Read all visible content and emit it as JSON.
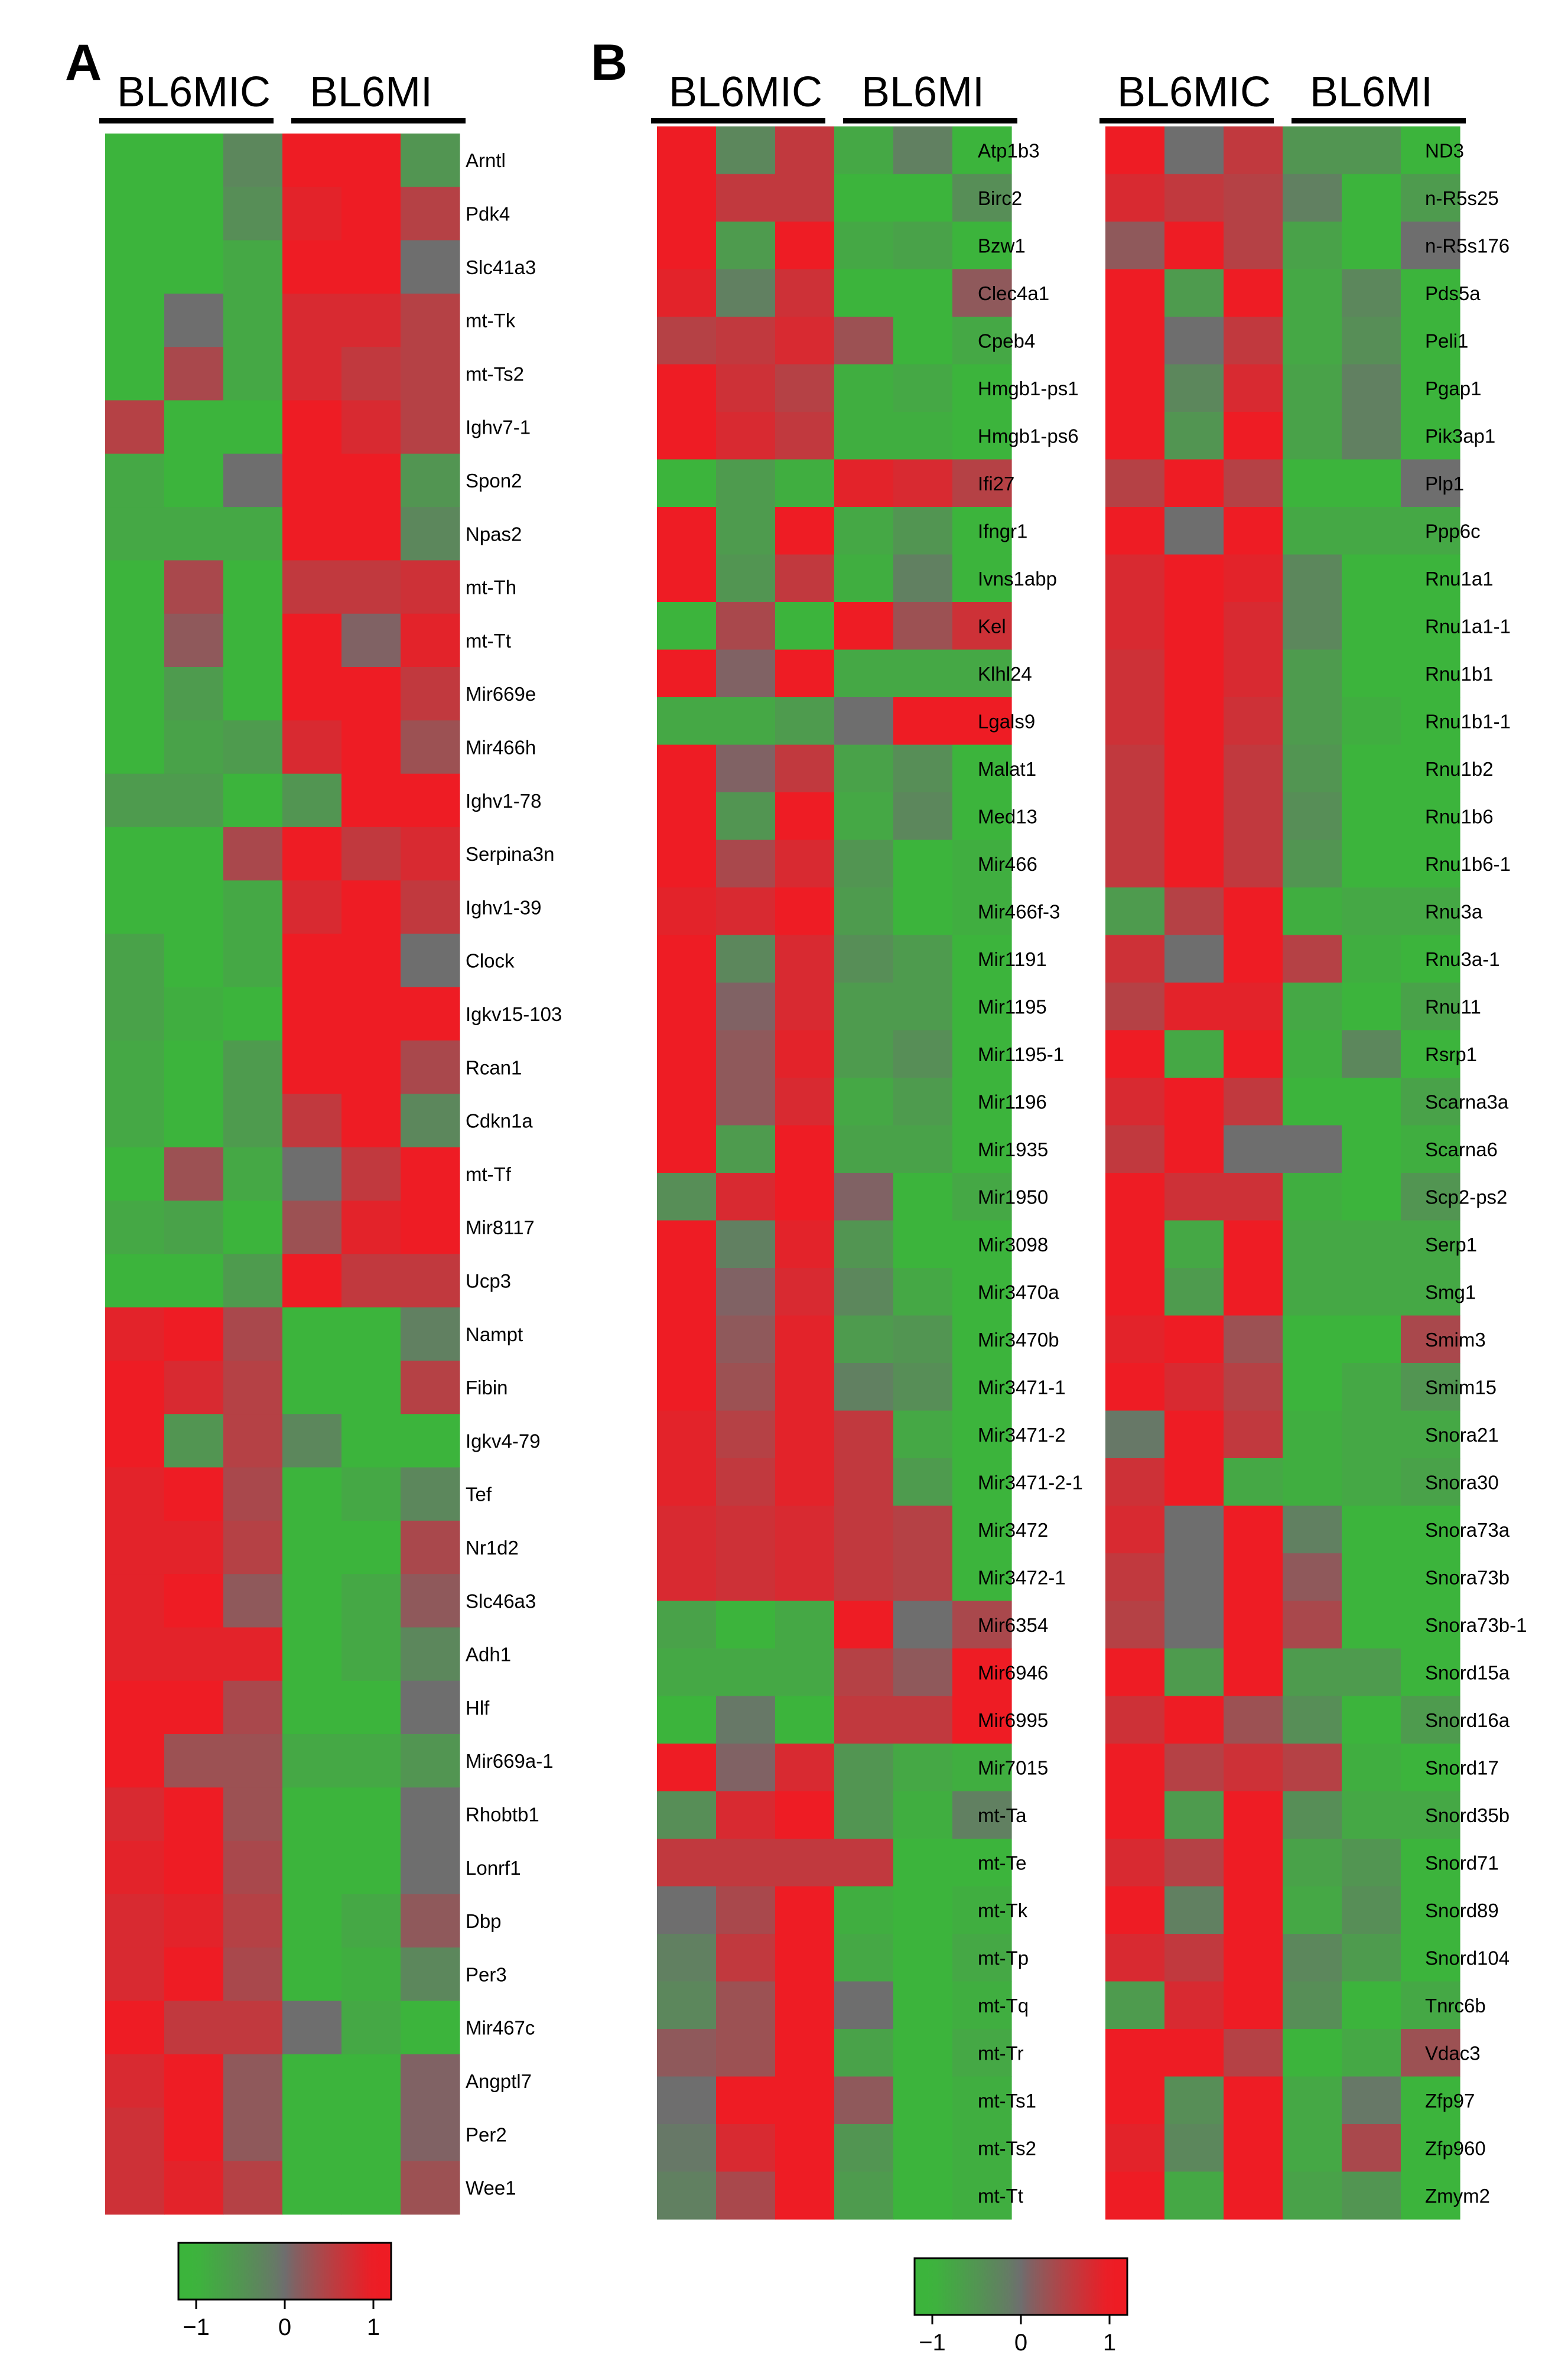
{
  "chart_data": [
    {
      "type": "heatmap",
      "panel": "A",
      "title": "",
      "groups": [
        "BL6MIC",
        "BL6MI"
      ],
      "columns_per_group": 3,
      "rows": [
        "Arntl",
        "Pdk4",
        "Slc41a3",
        "mt-Tk",
        "mt-Ts2",
        "Ighv7-1",
        "Spon2",
        "Npas2",
        "mt-Th",
        "mt-Tt",
        "Mir669e",
        "Mir466h",
        "Ighv1-78",
        "Serpina3n",
        "Ighv1-39",
        "Clock",
        "Igkv15-103",
        "Rcan1",
        "Cdkn1a",
        "mt-Tf",
        "Mir8117",
        "Ucp3",
        "Nampt",
        "Fibin",
        "Igkv4-79",
        "Tef",
        "Nr1d2",
        "Slc46a3",
        "Adh1",
        "Hlf",
        "Mir669a-1",
        "Rhobtb1",
        "Lonrf1",
        "Dbp",
        "Per3",
        "Mir467c",
        "Angptl7",
        "Per2",
        "Wee1"
      ],
      "values": [
        [
          -1,
          -1,
          -0.3,
          1.1,
          1.1,
          -0.5
        ],
        [
          -1,
          -1,
          -0.4,
          0.9,
          1.1,
          0.5
        ],
        [
          -1,
          -1,
          -0.8,
          1.2,
          1.2,
          0
        ],
        [
          -1,
          0,
          -0.8,
          0.8,
          0.8,
          0.5
        ],
        [
          -1,
          0.4,
          -0.8,
          0.8,
          0.6,
          0.5
        ],
        [
          0.5,
          -1,
          -1,
          1,
          0.8,
          0.5
        ],
        [
          -0.8,
          -1,
          0,
          1.2,
          1,
          -0.5
        ],
        [
          -0.8,
          -0.8,
          -0.8,
          1.2,
          1.2,
          -0.3
        ],
        [
          -1,
          0.4,
          -1,
          0.6,
          0.6,
          0.7
        ],
        [
          -1,
          0.2,
          -1,
          1,
          0.1,
          0.9
        ],
        [
          -1,
          -0.6,
          -1,
          1,
          1,
          0.6
        ],
        [
          -1,
          -0.7,
          -0.6,
          0.8,
          1.3,
          0.3
        ],
        [
          -0.6,
          -0.6,
          -1,
          -0.5,
          1.3,
          1.1
        ],
        [
          -1,
          -1,
          0.4,
          1,
          0.6,
          0.8
        ],
        [
          -1,
          -1,
          -0.8,
          0.8,
          1.4,
          0.6
        ],
        [
          -0.7,
          -1,
          -0.8,
          1.1,
          1.1,
          0
        ],
        [
          -0.7,
          -0.9,
          -1,
          1,
          1,
          1
        ],
        [
          -0.8,
          -1,
          -0.6,
          1,
          1,
          0.4
        ],
        [
          -0.8,
          -1,
          -0.6,
          0.6,
          1.4,
          -0.3
        ],
        [
          -1,
          0.3,
          -0.8,
          0,
          0.6,
          1.4
        ],
        [
          -0.8,
          -0.7,
          -1,
          0.3,
          0.9,
          1.4
        ],
        [
          -1,
          -1,
          -0.6,
          1.4,
          0.6,
          0.6
        ],
        [
          0.9,
          1.1,
          0.4,
          -1,
          -1,
          -0.2
        ],
        [
          1,
          0.8,
          0.5,
          -1,
          -1,
          0.5
        ],
        [
          1.3,
          -0.5,
          0.5,
          -0.3,
          -1,
          -1
        ],
        [
          0.9,
          1.2,
          0.4,
          -1,
          -0.8,
          -0.3
        ],
        [
          0.9,
          0.9,
          0.5,
          -1,
          -1,
          0.4
        ],
        [
          0.9,
          1,
          0.2,
          -1,
          -0.8,
          0.2
        ],
        [
          0.9,
          0.9,
          0.9,
          -1,
          -0.8,
          -0.3
        ],
        [
          1,
          1,
          0.4,
          -1,
          -1,
          0
        ],
        [
          1.3,
          0.3,
          0.3,
          -0.8,
          -0.8,
          -0.5
        ],
        [
          0.8,
          1.3,
          0.3,
          -1,
          -1,
          0
        ],
        [
          0.9,
          1.1,
          0.4,
          -1,
          -1,
          0
        ],
        [
          0.8,
          0.9,
          0.5,
          -1,
          -0.8,
          0.2
        ],
        [
          0.8,
          1,
          0.4,
          -1,
          -0.9,
          -0.3
        ],
        [
          1,
          0.6,
          0.6,
          0,
          -0.8,
          -1
        ],
        [
          0.8,
          1.3,
          0.2,
          -1,
          -1,
          0.1
        ],
        [
          0.7,
          1.4,
          0.2,
          -1,
          -1,
          0.1
        ],
        [
          0.7,
          0.9,
          0.5,
          -1,
          -1,
          0.3
        ]
      ],
      "colorbar": {
        "ticks": [
          "-1",
          "0",
          "1"
        ],
        "low_color": "#3cb43c",
        "mid_color": "#6e6e6e",
        "high_color": "#ee1c24"
      }
    },
    {
      "type": "heatmap",
      "panel": "B",
      "title": "",
      "groups": [
        "BL6MIC",
        "BL6MI"
      ],
      "columns_per_group": 3,
      "rows": [
        "Atp1b3",
        "Birc2",
        "Bzw1",
        "Clec4a1",
        "Cpeb4",
        "Hmgb1-ps1",
        "Hmgb1-ps6",
        "Ifi27",
        "Ifngr1",
        "Ivns1abp",
        "Kel",
        "Klhl24",
        "Lgals9",
        "Malat1",
        "Med13",
        "Mir466",
        "Mir466f-3",
        "Mir1191",
        "Mir1195",
        "Mir1195-1",
        "Mir1196",
        "Mir1935",
        "Mir1950",
        "Mir3098",
        "Mir3470a",
        "Mir3470b",
        "Mir3471-1",
        "Mir3471-2",
        "Mir3471-2-1",
        "Mir3472",
        "Mir3472-1",
        "Mir6354",
        "Mir6946",
        "Mir6995",
        "Mir7015",
        "mt-Ta",
        "mt-Te",
        "mt-Tk",
        "mt-Tp",
        "mt-Tq",
        "mt-Tr",
        "mt-Ts1",
        "mt-Ts2",
        "mt-Tt"
      ],
      "values": [
        [
          1.3,
          -0.3,
          0.6,
          -0.8,
          -0.2,
          -1
        ],
        [
          1,
          0.6,
          0.6,
          -1,
          -1,
          -0.4
        ],
        [
          1,
          -0.6,
          1,
          -0.8,
          -0.7,
          -1
        ],
        [
          0.9,
          -0.2,
          0.7,
          -1,
          -1,
          0.2
        ],
        [
          0.5,
          0.6,
          0.8,
          0.3,
          -1,
          -0.8
        ],
        [
          1.3,
          0.7,
          0.5,
          -0.9,
          -0.8,
          -1
        ],
        [
          1.2,
          0.8,
          0.6,
          -0.9,
          -0.9,
          -1
        ],
        [
          -1,
          -0.6,
          -0.9,
          0.9,
          0.8,
          0.5
        ],
        [
          1,
          -0.6,
          1.1,
          -0.8,
          -0.5,
          -1
        ],
        [
          1.2,
          -0.5,
          0.6,
          -0.9,
          -0.2,
          -1
        ],
        [
          -1,
          0.4,
          -1,
          1,
          0.3,
          0.7
        ],
        [
          1,
          0.1,
          1.2,
          -0.8,
          -0.8,
          -0.8
        ],
        [
          -0.8,
          -0.8,
          -0.6,
          0,
          1,
          1.3
        ],
        [
          1.2,
          0.1,
          0.6,
          -0.7,
          -0.4,
          -1
        ],
        [
          1,
          -0.5,
          1.1,
          -0.8,
          -0.3,
          -1
        ],
        [
          1,
          0.4,
          0.8,
          -0.5,
          -1,
          -0.9
        ],
        [
          0.9,
          0.8,
          1,
          -0.6,
          -1,
          -0.9
        ],
        [
          1,
          -0.3,
          0.8,
          -0.4,
          -0.6,
          -1
        ],
        [
          1,
          0.1,
          0.8,
          -0.6,
          -0.6,
          -1
        ],
        [
          1,
          0.2,
          0.9,
          -0.6,
          -0.4,
          -1
        ],
        [
          1,
          0.2,
          0.8,
          -0.8,
          -0.6,
          -1
        ],
        [
          1,
          -0.6,
          1.2,
          -0.7,
          -0.7,
          -1
        ],
        [
          -0.4,
          0.8,
          1.1,
          0.1,
          -1,
          -0.8
        ],
        [
          1,
          -0.2,
          0.9,
          -0.5,
          -1,
          -1
        ],
        [
          1,
          0.1,
          0.8,
          -0.3,
          -0.8,
          -1
        ],
        [
          1,
          0.2,
          0.9,
          -0.6,
          -0.5,
          -1
        ],
        [
          1,
          0.3,
          0.9,
          -0.2,
          -0.4,
          -1
        ],
        [
          0.9,
          0.5,
          0.9,
          0.6,
          -0.8,
          -1
        ],
        [
          0.9,
          0.6,
          0.9,
          0.6,
          -0.6,
          -1
        ],
        [
          0.8,
          0.7,
          0.8,
          0.6,
          0.5,
          -1
        ],
        [
          0.8,
          0.7,
          0.8,
          0.6,
          0.5,
          -1
        ],
        [
          -0.7,
          -1,
          -0.8,
          1.4,
          0,
          0.4
        ],
        [
          -0.8,
          -0.8,
          -0.8,
          0.5,
          0.2,
          1.4
        ],
        [
          -1,
          -0.1,
          -1,
          0.6,
          0.6,
          1
        ],
        [
          1.2,
          0.1,
          0.8,
          -0.5,
          -0.8,
          -0.9
        ],
        [
          -0.4,
          0.8,
          1.4,
          -0.5,
          -0.9,
          -0.2
        ],
        [
          0.6,
          0.6,
          0.6,
          0.6,
          -1,
          -1
        ],
        [
          0,
          0.4,
          1.4,
          -0.9,
          -1,
          -0.9
        ],
        [
          -0.2,
          0.6,
          1.4,
          -0.8,
          -1,
          -0.8
        ],
        [
          -0.3,
          0.3,
          1.4,
          0,
          -1,
          -0.9
        ],
        [
          0.2,
          0.3,
          1.3,
          -0.7,
          -1,
          -0.8
        ],
        [
          0,
          1,
          1.3,
          0.2,
          -1,
          -0.9
        ],
        [
          -0.1,
          0.8,
          1.3,
          -0.5,
          -1,
          -0.9
        ],
        [
          -0.2,
          0.4,
          1.4,
          -0.6,
          -1,
          -0.9
        ]
      ]
    },
    {
      "type": "heatmap",
      "panel": "B",
      "title": "",
      "groups": [
        "BL6MIC",
        "BL6MI"
      ],
      "columns_per_group": 3,
      "rows": [
        "ND3",
        "n-R5s25",
        "n-R5s176",
        "Pds5a",
        "Peli1",
        "Pgap1",
        "Pik3ap1",
        "Plp1",
        "Ppp6c",
        "Rnu1a1",
        "Rnu1a1-1",
        "Rnu1b1",
        "Rnu1b1-1",
        "Rnu1b2",
        "Rnu1b6",
        "Rnu1b6-1",
        "Rnu3a",
        "Rnu3a-1",
        "Rnu11",
        "Rsrp1",
        "Scarna3a",
        "Scarna6",
        "Scp2-ps2",
        "Serp1",
        "Smg1",
        "Smim3",
        "Smim15",
        "Snora21",
        "Snora30",
        "Snora73a",
        "Snora73b",
        "Snora73b-1",
        "Snord15a",
        "Snord16a",
        "Snord17",
        "Snord35b",
        "Snord71",
        "Snord89",
        "Snord104",
        "Tnrc6b",
        "Vdac3",
        "Zfp97",
        "Zfp960",
        "Zmym2"
      ],
      "values": [
        [
          1.2,
          0,
          0.6,
          -0.5,
          -0.5,
          -1
        ],
        [
          0.8,
          0.6,
          0.5,
          -0.2,
          -1,
          -0.6
        ],
        [
          0.2,
          1.2,
          0.5,
          -0.7,
          -1,
          0
        ],
        [
          1,
          -0.6,
          1.1,
          -0.8,
          -0.3,
          -1
        ],
        [
          1,
          0,
          0.6,
          -0.8,
          -0.4,
          -1
        ],
        [
          1.2,
          -0.3,
          0.8,
          -0.7,
          -0.2,
          -1
        ],
        [
          1.1,
          -0.5,
          1.1,
          -0.7,
          -0.2,
          -1
        ],
        [
          0.5,
          1.2,
          0.5,
          -1,
          -1,
          0
        ],
        [
          1.2,
          0,
          1,
          -0.8,
          -0.8,
          -0.8
        ],
        [
          0.8,
          1,
          0.9,
          -0.3,
          -1,
          -1
        ],
        [
          0.8,
          1,
          0.8,
          -0.3,
          -1,
          -1
        ],
        [
          0.7,
          1.1,
          0.8,
          -0.6,
          -1,
          -1
        ],
        [
          0.7,
          1.2,
          0.7,
          -0.6,
          -0.9,
          -1
        ],
        [
          0.6,
          1.2,
          0.6,
          -0.5,
          -1,
          -1
        ],
        [
          0.6,
          1.2,
          0.6,
          -0.4,
          -1,
          -1
        ],
        [
          0.6,
          1.2,
          0.6,
          -0.5,
          -1,
          -1
        ],
        [
          -0.6,
          0.5,
          1.4,
          -0.9,
          -0.8,
          -0.8
        ],
        [
          0.7,
          0,
          1.3,
          0.5,
          -0.9,
          -1
        ],
        [
          0.5,
          0.9,
          0.9,
          -0.8,
          -1,
          -0.7
        ],
        [
          1.3,
          -0.8,
          1,
          -0.9,
          -0.3,
          -1
        ],
        [
          0.8,
          1.1,
          0.6,
          -1,
          -1,
          -0.7
        ],
        [
          0.6,
          1.3,
          0,
          0,
          -1,
          -0.9
        ],
        [
          1.1,
          0.7,
          0.7,
          -0.9,
          -1,
          -0.5
        ],
        [
          1.2,
          -0.8,
          1.1,
          -0.8,
          -0.8,
          -0.8
        ],
        [
          1,
          -0.6,
          1.1,
          -0.8,
          -0.8,
          -0.8
        ],
        [
          0.9,
          1.1,
          0.3,
          -1,
          -1,
          0.4
        ],
        [
          1.3,
          0.8,
          0.5,
          -1,
          -0.8,
          -0.5
        ],
        [
          -0.1,
          1.4,
          0.6,
          -0.9,
          -0.8,
          -0.8
        ],
        [
          0.7,
          1.4,
          -0.8,
          -0.9,
          -0.8,
          -0.7
        ],
        [
          0.8,
          0,
          1.3,
          -0.2,
          -1,
          -1
        ],
        [
          0.6,
          0,
          1.3,
          0.2,
          -1,
          -1
        ],
        [
          0.5,
          0,
          1.3,
          0.4,
          -1,
          -1
        ],
        [
          1.1,
          -0.6,
          1,
          -0.6,
          -0.6,
          -1
        ],
        [
          0.7,
          1.4,
          0.3,
          -0.4,
          -1,
          -0.6
        ],
        [
          1,
          0.5,
          0.7,
          0.5,
          -0.9,
          -1
        ],
        [
          1.1,
          -0.6,
          1.2,
          -0.4,
          -0.8,
          -0.8
        ],
        [
          0.8,
          0.5,
          1,
          -0.7,
          -0.5,
          -1
        ],
        [
          1.1,
          -0.2,
          1,
          -0.8,
          -0.4,
          -1
        ],
        [
          0.8,
          0.6,
          1,
          -0.3,
          -0.6,
          -1
        ],
        [
          -0.6,
          0.8,
          1.3,
          -0.4,
          -1,
          -0.8
        ],
        [
          1,
          1,
          0.5,
          -1,
          -0.8,
          0.3
        ],
        [
          1,
          -0.4,
          1.2,
          -0.8,
          -0.1,
          -1
        ],
        [
          0.9,
          -0.3,
          1.2,
          -0.8,
          0.4,
          -1
        ],
        [
          1.3,
          -0.8,
          1.1,
          -0.7,
          -0.5,
          -1
        ]
      ],
      "colorbar": {
        "ticks": [
          "-1",
          "0",
          "1"
        ],
        "low_color": "#3cb43c",
        "mid_color": "#6e6e6e",
        "high_color": "#ee1c24"
      }
    }
  ]
}
